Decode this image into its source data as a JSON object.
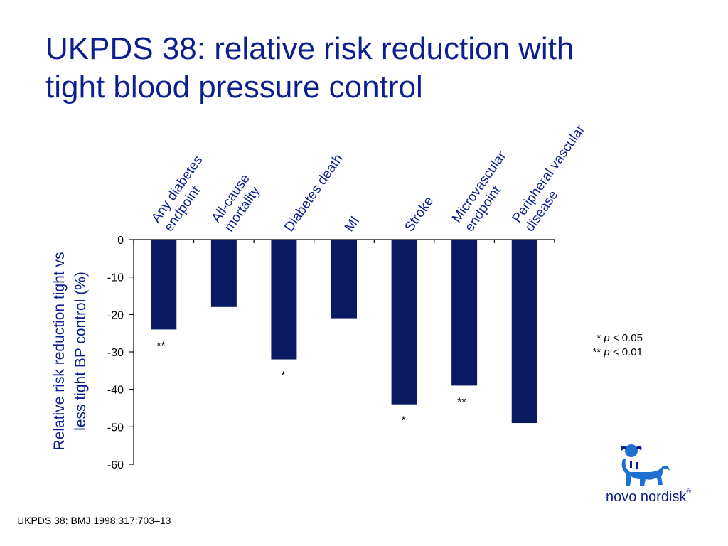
{
  "slide": {
    "title_line1": "UKPDS 38: relative risk reduction with",
    "title_line2": "tight blood pressure control",
    "footnote": "UKPDS 38: BMJ 1998;317:703–13",
    "legend": {
      "line1_stars": "* ",
      "line1_p": "p",
      "line1_rest": " < 0.05",
      "line2_stars": "** ",
      "line2_p": "p",
      "line2_rest": " < 0.01"
    },
    "logo_text": "novo nordisk",
    "logo_mark": "®",
    "colors": {
      "title": "#0b1f8f",
      "bar": "#0a1a63"
    }
  },
  "chart_data": {
    "type": "bar",
    "categories": [
      [
        "Any diabetes",
        "endpoint"
      ],
      [
        "All-cause",
        "mortality"
      ],
      [
        "Diabetes death"
      ],
      [
        "MI"
      ],
      [
        "Stroke"
      ],
      [
        "Microvascular",
        "endpoint"
      ],
      [
        "Peripheral vascular",
        "disease"
      ]
    ],
    "values": [
      -24,
      -18,
      -32,
      -21,
      -44,
      -39,
      -49
    ],
    "significance": [
      "**",
      "",
      "*",
      "",
      "*",
      "**",
      ""
    ],
    "ylabel_line1": "Relative risk reduction tight vs",
    "ylabel_line2": "less tight BP control (%)",
    "yticks": [
      0,
      -10,
      -20,
      -30,
      -40,
      -50,
      -60
    ],
    "ylim": [
      -60,
      0
    ],
    "grid": false,
    "legend_placement": "right"
  }
}
